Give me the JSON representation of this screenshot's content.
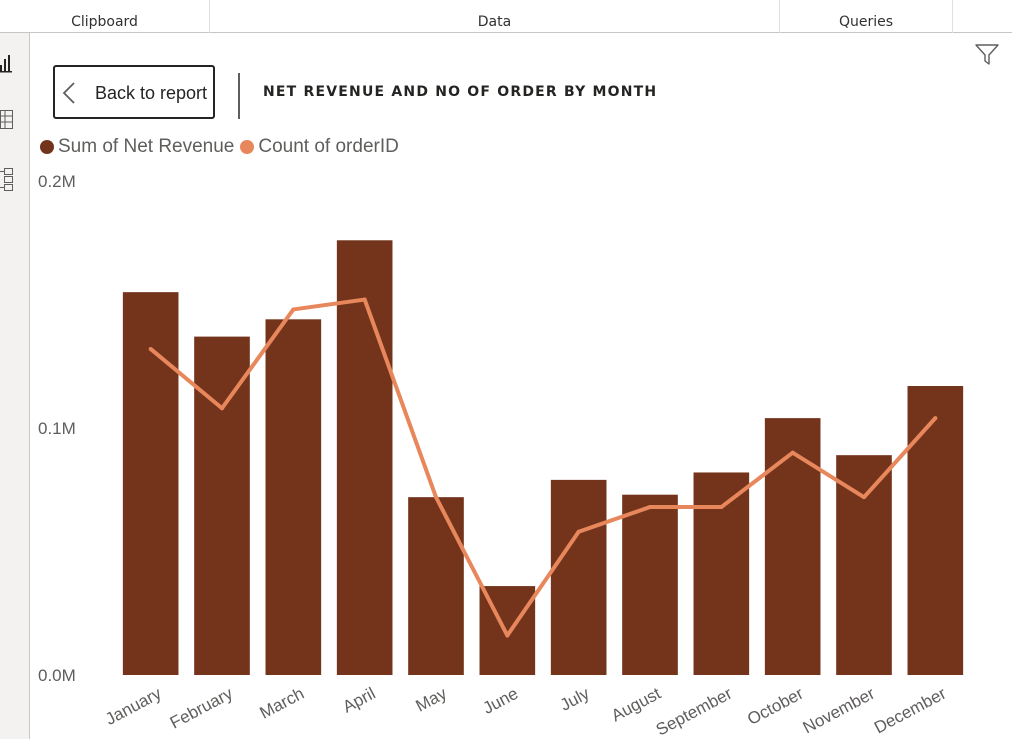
{
  "ribbon": {
    "groups": [
      {
        "label": "Clipboard"
      },
      {
        "label": "Data"
      },
      {
        "label": "Queries"
      }
    ]
  },
  "rail": {
    "icons": [
      "report-view-icon",
      "table-view-icon",
      "model-view-icon"
    ]
  },
  "visual": {
    "back_label": "Back to report",
    "title": "NET REVENUE AND NO OF ORDER BY MONTH"
  },
  "colors": {
    "bar": "#74341c",
    "line": "#e8875b",
    "axis_text": "#605e5c"
  },
  "chart_data": {
    "type": "bar",
    "title": "NET REVENUE AND NO OF ORDER BY MONTH",
    "categories": [
      "January",
      "February",
      "March",
      "April",
      "May",
      "June",
      "July",
      "August",
      "September",
      "October",
      "November",
      "December"
    ],
    "series": [
      {
        "name": "Sum of Net Revenue",
        "type": "bar",
        "axis": "left",
        "values": [
          155000,
          137000,
          144000,
          176000,
          72000,
          36000,
          79000,
          73000,
          82000,
          104000,
          89000,
          117000
        ]
      },
      {
        "name": "Count of orderID",
        "type": "line",
        "axis": "right",
        "values": [
          0.66,
          0.54,
          0.74,
          0.76,
          0.36,
          0.08,
          0.29,
          0.34,
          0.34,
          0.45,
          0.36,
          0.52
        ]
      }
    ],
    "y_left": {
      "ticks": [
        "0.0M",
        "0.1M",
        "0.2M"
      ],
      "range": [
        0,
        200000
      ]
    },
    "y_right_note": "right axis ticks cut off at image edge",
    "legend_position": "top-left",
    "grid": false
  }
}
